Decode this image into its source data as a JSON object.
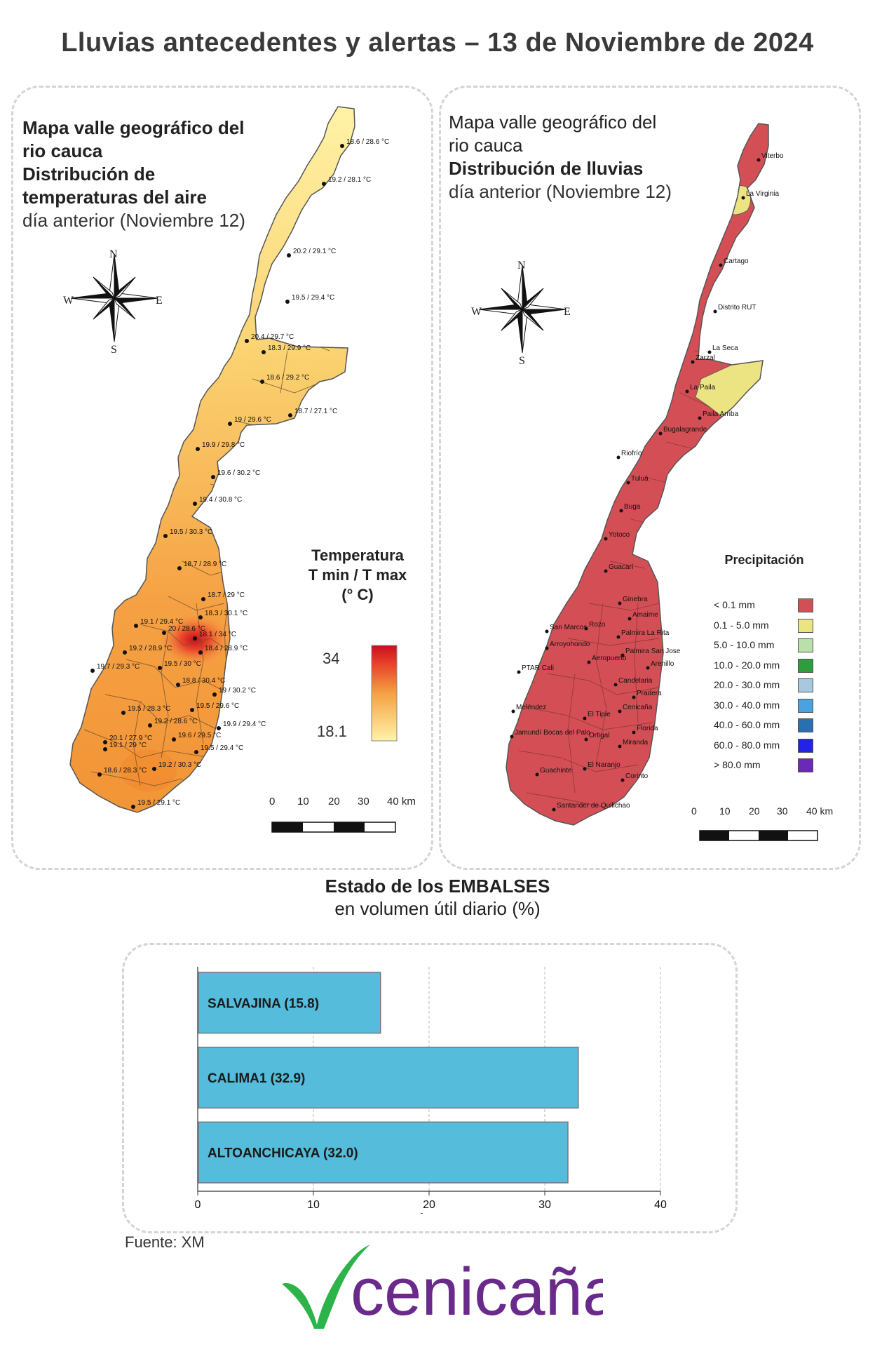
{
  "title": "Lluvias antecedentes y alertas – 13 de Noviembre de 2024",
  "temp_map": {
    "title_bold": [
      "Mapa valle geográfico del",
      "rio cauca",
      "Distribución de",
      "temperaturas del aire"
    ],
    "subtitle": "día anterior (Noviembre 12)",
    "legend_title": [
      "Temperatura",
      "T min / T max",
      "(° C)"
    ],
    "legend_max": "34",
    "legend_min": "18.1",
    "scale_labels": [
      "0",
      "10",
      "20",
      "30",
      "40 km"
    ],
    "colors": {
      "low": "#fff3a8",
      "mid": "#f7a94a",
      "high": "#c8101e"
    },
    "stations": [
      {
        "label": "18.6 / 28.6 °C"
      },
      {
        "label": "19.2 / 28.1 °C"
      },
      {
        "label": "20.2 / 29.1 °C"
      },
      {
        "label": "19.5 / 29.4 °C"
      },
      {
        "label": "20.4 / 29.7 °C"
      },
      {
        "label": "18.3 / 29.9 °C"
      },
      {
        "label": "18.6 / 29.2 °C"
      },
      {
        "label": "18.7 / 27.1 °C"
      },
      {
        "label": "19 / 29.6 °C"
      },
      {
        "label": "19.9 / 29.8 °C"
      },
      {
        "label": "19.6 / 30.2 °C"
      },
      {
        "label": "19.4 / 30.8 °C"
      },
      {
        "label": "19.5 / 30.3 °C"
      },
      {
        "label": "18.7 / 28.9 °C"
      },
      {
        "label": "18.7 / 29 °C"
      },
      {
        "label": "18.3 / 30.1 °C"
      },
      {
        "label": "19.1 / 29.4 °C"
      },
      {
        "label": "20 / 28.6 °C"
      },
      {
        "label": "18.1 / 34 °C"
      },
      {
        "label": "19.2 / 28.9 °C"
      },
      {
        "label": "18.4 / 28.9 °C"
      },
      {
        "label": "19.7 / 29.3 °C"
      },
      {
        "label": "19.5 / 30 °C"
      },
      {
        "label": "18.8 / 30.4 °C"
      },
      {
        "label": "19 / 30.2 °C"
      },
      {
        "label": "19.5 / 28.3 °C"
      },
      {
        "label": "19.5 / 29.6 °C"
      },
      {
        "label": "19.2 / 28.6 °C"
      },
      {
        "label": "19.9 / 29.4 °C"
      },
      {
        "label": "20.1 / 27.9 °C"
      },
      {
        "label": "19.6 / 29.5 °C"
      },
      {
        "label": "19.1 / 29 °C"
      },
      {
        "label": "19.5 / 29.4 °C"
      },
      {
        "label": "18.6 / 28.3 °C"
      },
      {
        "label": "19.2 / 30.3 °C"
      },
      {
        "label": "19.5 / 29.1 °C"
      }
    ]
  },
  "rain_map": {
    "title": [
      "Mapa valle geográfico del",
      "rio cauca"
    ],
    "title_bold": "Distribución de lluvias",
    "subtitle": "día anterior (Noviembre 12)",
    "legend_title": "Precipitación",
    "legend": [
      {
        "label": "< 0.1 mm",
        "color": "#d44f55"
      },
      {
        "label": "0.1 - 5.0 mm",
        "color": "#ece382"
      },
      {
        "label": "5.0 - 10.0 mm",
        "color": "#b8e0a8"
      },
      {
        "label": "10.0 - 20.0 mm",
        "color": "#2e9e3c"
      },
      {
        "label": "20.0 - 30.0 mm",
        "color": "#a8c8e0"
      },
      {
        "label": "30.0 - 40.0 mm",
        "color": "#4aa3e0"
      },
      {
        "label": "40.0 - 60.0 mm",
        "color": "#2a6fb0"
      },
      {
        "label": "60.0 - 80.0 mm",
        "color": "#2222e8"
      },
      {
        "label": "> 80.0 mm",
        "color": "#6a2ab8"
      }
    ],
    "scale_labels": [
      "0",
      "10",
      "20",
      "30",
      "40 km"
    ],
    "places": [
      "Viterbo",
      "La Virginia",
      "Cartago",
      "Distrito RUT",
      "La Seca",
      "Zarzal",
      "La Paila",
      "Paila Arriba",
      "Bugalagrande",
      "Riofrío",
      "Tuluá",
      "Buga",
      "Yotoco",
      "Guacarí",
      "Ginebra",
      "Amaime",
      "San Marcos",
      "Rozo",
      "Palmira La Rita",
      "Arroyohondo",
      "Palmira San Jose",
      "Aeropuerto",
      "Arenillo",
      "PTAR Cali",
      "Candelaria",
      "Pradera",
      "Meléndez",
      "Cenicaña",
      "El Tiple",
      "Jamundí Bocas del Palo",
      "Florida",
      "Ortigal",
      "Miranda",
      "Guachinte",
      "El Naranjo",
      "Corinto",
      "Santander de Quilichao"
    ]
  },
  "compass": {
    "n": "N",
    "s": "S",
    "e": "E",
    "w": "W"
  },
  "reservoirs": {
    "title": "Estado de los EMBALSES",
    "subtitle": "en volumen útil diario (%)",
    "source": "Fuente: XM",
    "logo_text": "cenicaña",
    "chart_data": {
      "type": "bar",
      "orientation": "horizontal",
      "categories": [
        "SALVAJINA",
        "CALIMA1",
        "ALTOANCHICAYA"
      ],
      "values": [
        15.8,
        32.9,
        32.0
      ],
      "bar_labels": [
        "SALVAJINA (15.8)",
        "CALIMA1 (32.9)",
        "ALTOANCHICAYA (32.0)"
      ],
      "xlabel": "Volumen Útil Diario (%)",
      "xlim": [
        0,
        40
      ],
      "xticks": [
        "0",
        "10",
        "20",
        "30",
        "40"
      ],
      "grid": true,
      "bar_color": "#55bcdc"
    }
  }
}
